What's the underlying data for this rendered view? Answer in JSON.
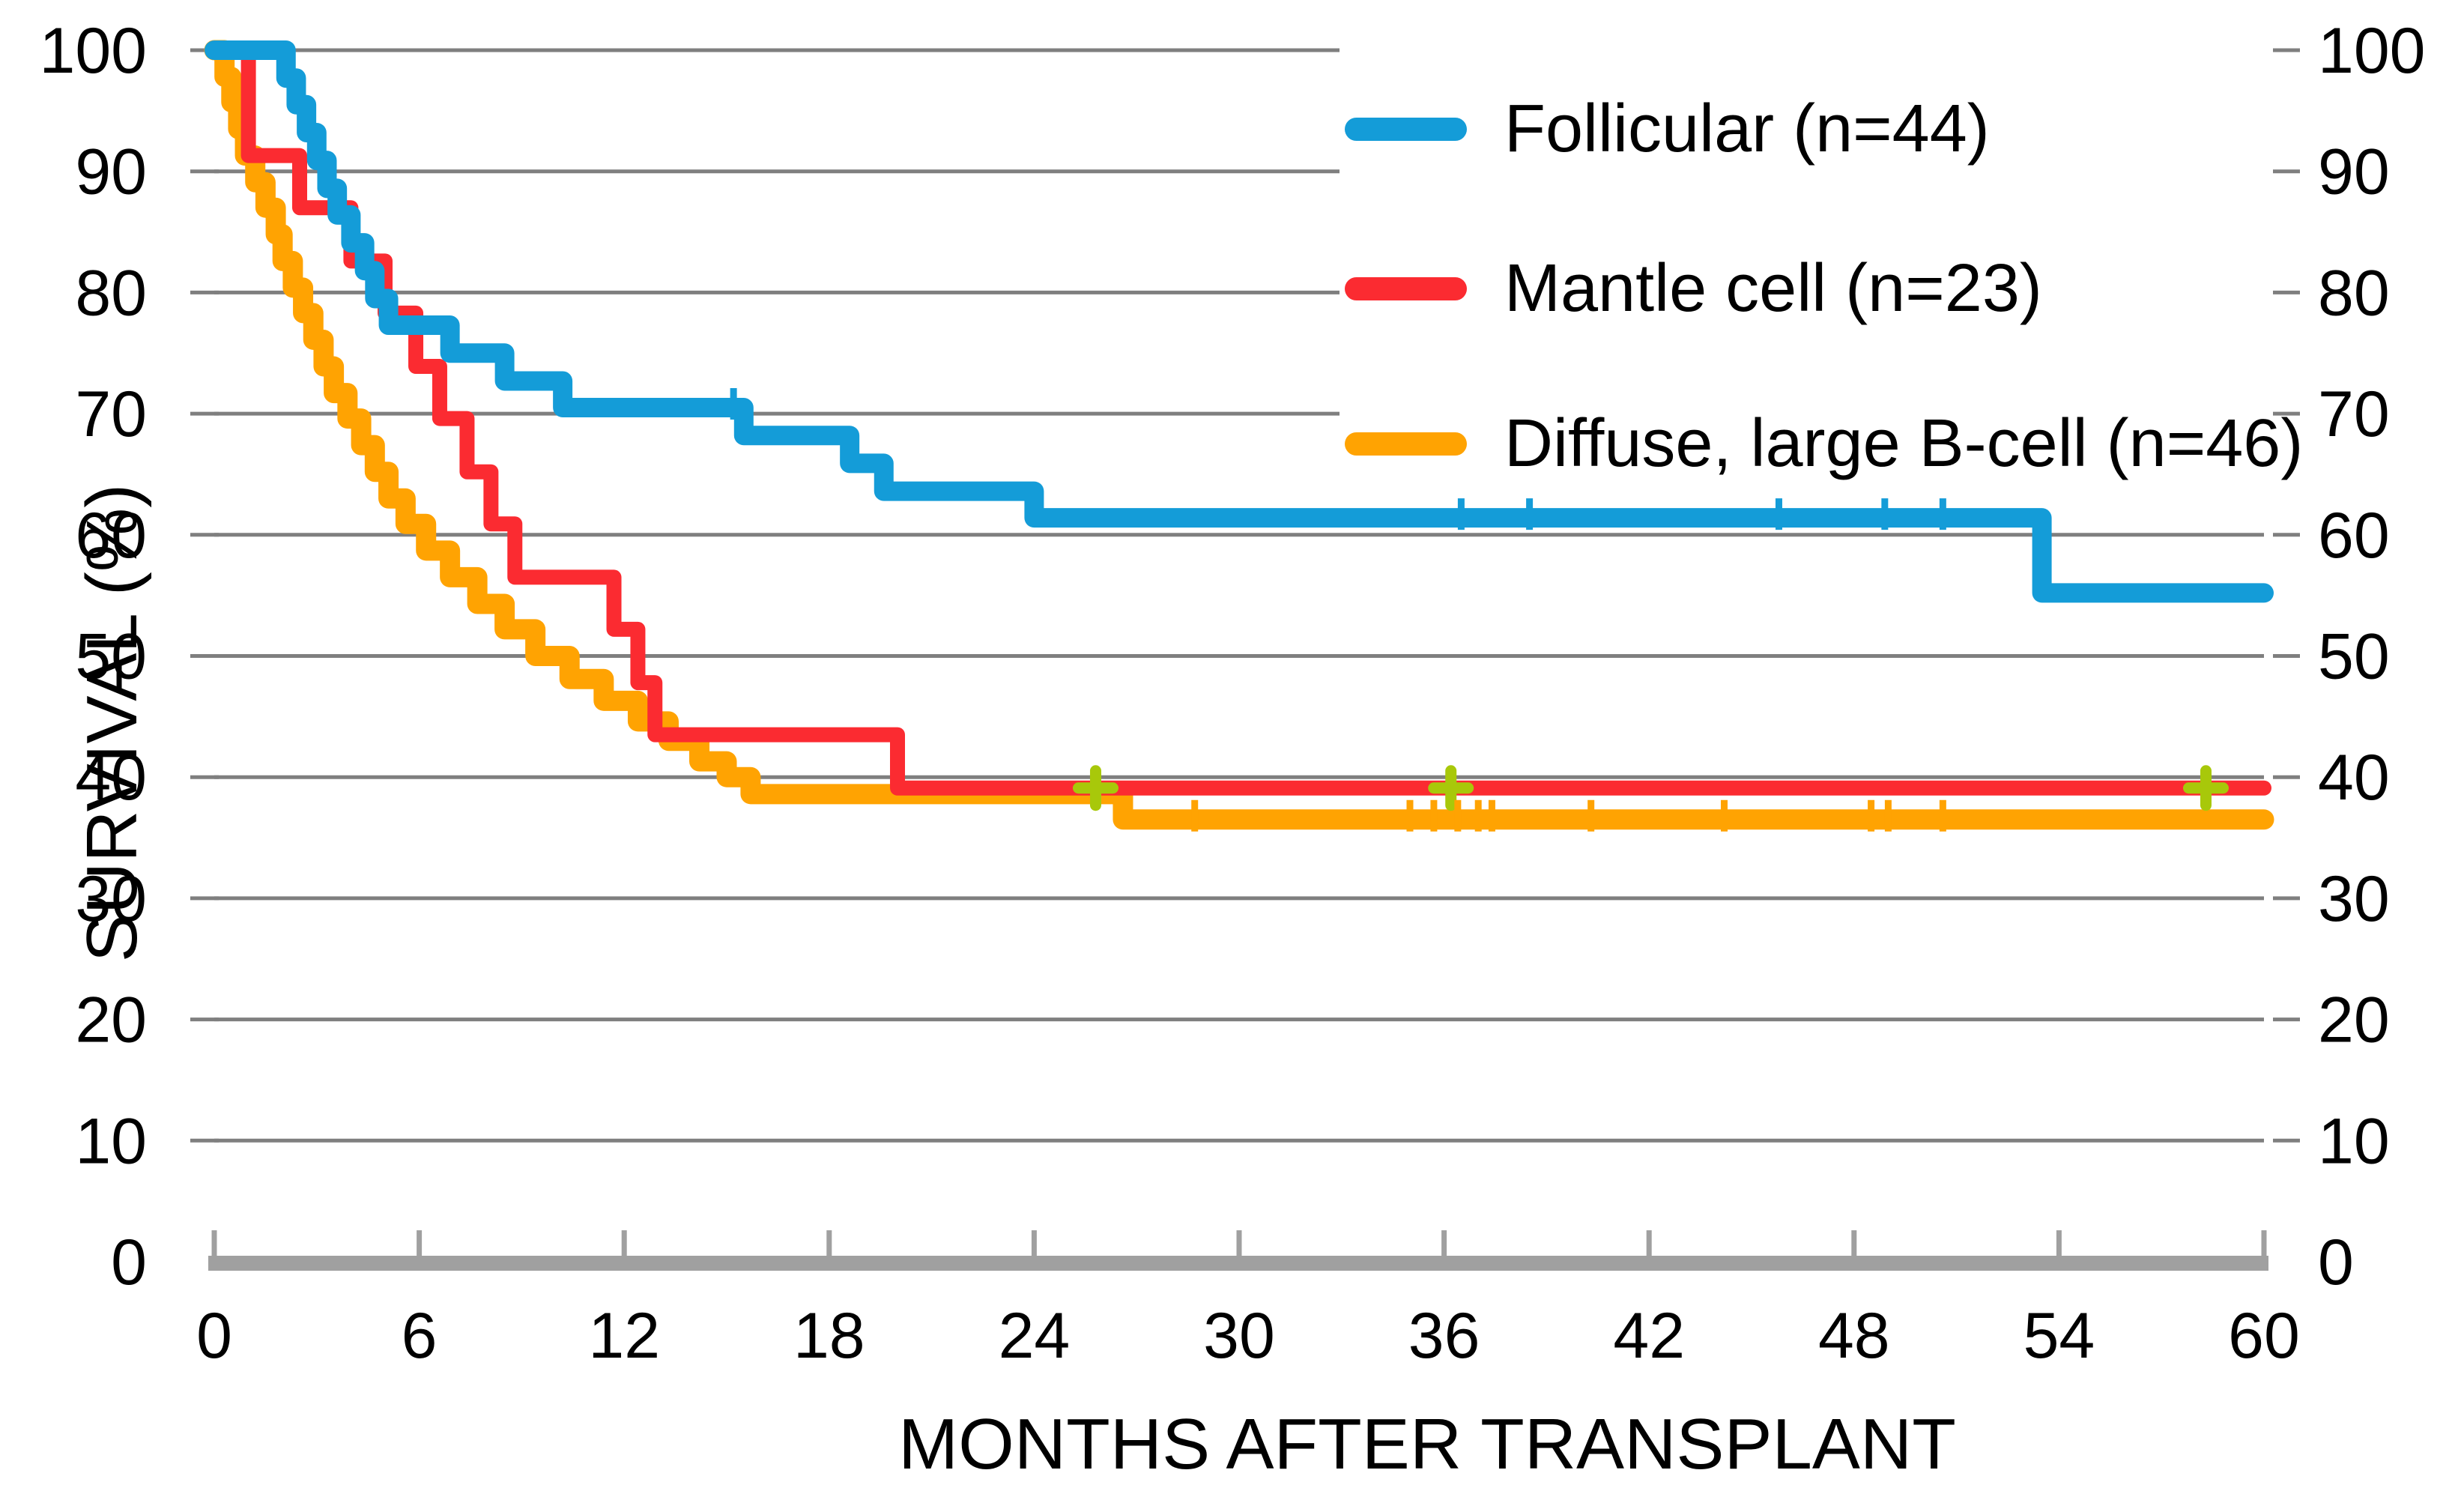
{
  "chart_data": {
    "type": "line",
    "subtype": "kaplan-meier-step",
    "title": "",
    "xlabel": "MONTHS AFTER TRANSPLANT",
    "ylabel": "SURVIVAL (%)",
    "xlim": [
      0,
      60
    ],
    "ylim": [
      0,
      100
    ],
    "x_ticks": [
      0,
      6,
      12,
      18,
      24,
      30,
      36,
      42,
      48,
      54,
      60
    ],
    "x_tick_labels": [
      "0",
      "6",
      "12",
      "18",
      "24",
      "30",
      "36",
      "42",
      "48",
      "54",
      "60"
    ],
    "y_ticks": [
      0,
      10,
      20,
      30,
      40,
      50,
      60,
      70,
      80,
      90,
      100
    ],
    "y_tick_labels": [
      "0",
      "10",
      "20",
      "30",
      "40",
      "50",
      "60",
      "70",
      "80",
      "90",
      "100"
    ],
    "y_axis_sides": "both",
    "grid": "horizontal",
    "grid_color": "#7f7f7f",
    "axis_color": "#a0a0a0",
    "background": "#ffffff",
    "legend_position": "top-right-inside",
    "censor_plus_color": "#a8c80a",
    "series": [
      {
        "name": "Follicular (n=44)",
        "color": "#149cd8",
        "line_width": 26,
        "start": [
          0,
          100
        ],
        "steps": [
          [
            2.1,
            97.7
          ],
          [
            2.4,
            95.5
          ],
          [
            2.7,
            93.2
          ],
          [
            3.0,
            90.9
          ],
          [
            3.3,
            88.6
          ],
          [
            3.6,
            86.4
          ],
          [
            4.0,
            84.1
          ],
          [
            4.4,
            81.8
          ],
          [
            4.7,
            79.5
          ],
          [
            5.1,
            77.3
          ],
          [
            6.9,
            75.0
          ],
          [
            8.5,
            72.7
          ],
          [
            10.2,
            70.5
          ],
          [
            15.5,
            68.2
          ],
          [
            18.6,
            65.9
          ],
          [
            19.6,
            63.6
          ],
          [
            24.0,
            61.4
          ],
          [
            53.5,
            55.2
          ]
        ],
        "end_month": 60,
        "censor_marker": "tick",
        "censors": [
          [
            15.2,
            70.5
          ],
          [
            36.5,
            61.4
          ],
          [
            38.5,
            61.4
          ],
          [
            45.8,
            61.4
          ],
          [
            48.9,
            61.4
          ],
          [
            50.6,
            61.4
          ]
        ]
      },
      {
        "name": "Mantle cell (n=23)",
        "color": "#fb2b31",
        "line_width": 20,
        "start": [
          0,
          100
        ],
        "steps": [
          [
            1.0,
            91.3
          ],
          [
            2.5,
            87.0
          ],
          [
            4.0,
            82.6
          ],
          [
            5.0,
            78.3
          ],
          [
            5.9,
            73.9
          ],
          [
            6.6,
            69.6
          ],
          [
            7.4,
            65.2
          ],
          [
            8.1,
            60.9
          ],
          [
            8.8,
            56.5
          ],
          [
            11.7,
            52.2
          ],
          [
            12.4,
            47.8
          ],
          [
            12.9,
            43.5
          ],
          [
            20.0,
            39.1
          ]
        ],
        "end_month": 60,
        "censor_marker": "plus",
        "censors": [
          [
            25.8,
            39.1
          ],
          [
            36.2,
            39.1
          ],
          [
            58.3,
            39.1
          ]
        ]
      },
      {
        "name": "Diffuse, large B-cell (n=46)",
        "color": "#ffa302",
        "line_width": 27,
        "start": [
          0,
          100
        ],
        "steps": [
          [
            0.3,
            97.8
          ],
          [
            0.5,
            95.7
          ],
          [
            0.7,
            93.5
          ],
          [
            0.9,
            91.3
          ],
          [
            1.2,
            89.1
          ],
          [
            1.5,
            87.0
          ],
          [
            1.8,
            84.8
          ],
          [
            2.0,
            82.6
          ],
          [
            2.3,
            80.4
          ],
          [
            2.6,
            78.3
          ],
          [
            2.9,
            76.1
          ],
          [
            3.2,
            73.9
          ],
          [
            3.5,
            71.7
          ],
          [
            3.9,
            69.6
          ],
          [
            4.3,
            67.4
          ],
          [
            4.7,
            65.2
          ],
          [
            5.1,
            63.0
          ],
          [
            5.6,
            60.9
          ],
          [
            6.2,
            58.7
          ],
          [
            6.9,
            56.5
          ],
          [
            7.7,
            54.3
          ],
          [
            8.5,
            52.2
          ],
          [
            9.4,
            50.0
          ],
          [
            10.4,
            48.1
          ],
          [
            11.4,
            46.3
          ],
          [
            12.4,
            44.6
          ],
          [
            13.3,
            43.0
          ],
          [
            14.2,
            41.3
          ],
          [
            15.0,
            40.0
          ],
          [
            15.7,
            38.6
          ],
          [
            26.6,
            36.5
          ]
        ],
        "end_month": 60,
        "censor_marker": "tick",
        "censors": [
          [
            28.7,
            36.5
          ],
          [
            35.0,
            36.5
          ],
          [
            35.7,
            36.5
          ],
          [
            36.4,
            36.5
          ],
          [
            37.0,
            36.5
          ],
          [
            37.4,
            36.5
          ],
          [
            40.3,
            36.5
          ],
          [
            44.2,
            36.5
          ],
          [
            48.5,
            36.5
          ],
          [
            49.0,
            36.5
          ],
          [
            50.6,
            36.5
          ]
        ]
      }
    ]
  }
}
